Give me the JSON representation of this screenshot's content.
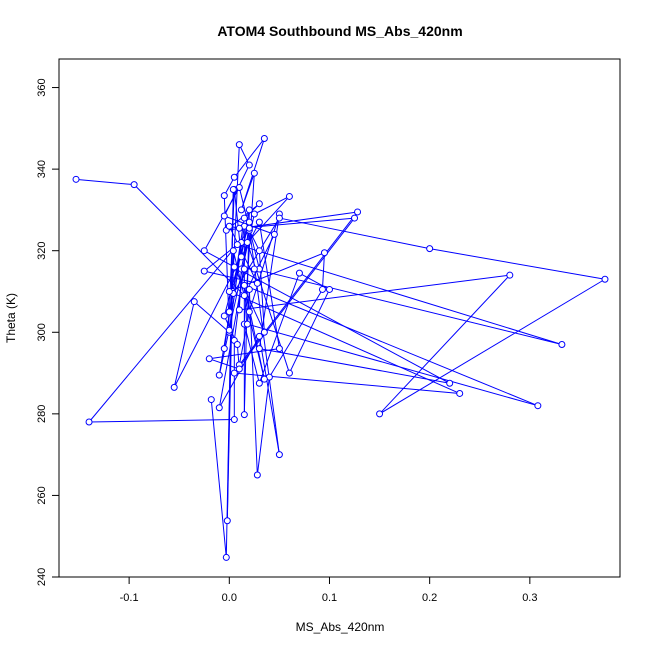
{
  "chart_data": {
    "type": "line",
    "title": "ATOM4 Southbound MS_Abs_420nm",
    "xlabel": "MS_Abs_420nm",
    "ylabel": "Theta (K)",
    "xlim": [
      -0.17,
      0.39
    ],
    "ylim": [
      240,
      367
    ],
    "xticks": [
      "-0.1",
      "0.0",
      "0.1",
      "0.2",
      "0.3"
    ],
    "yticks": [
      "240",
      "260",
      "280",
      "300",
      "320",
      "340",
      "360"
    ],
    "grid": false,
    "legend": "none",
    "colors": {
      "series": "#0000ff",
      "axes": "#000000"
    },
    "series": [
      {
        "x": [
          -0.153,
          -0.095,
          0.015,
          0.045,
          -0.005,
          0.02,
          0.01,
          0.003,
          -0.005,
          0.015,
          0.03,
          -0.003,
          0.128,
          0.01,
          0.02,
          0.05,
          0.03,
          0.22,
          -0.025,
          0.01,
          0.03,
          0.005,
          0.035,
          0.03,
          0.02,
          -0.14,
          0.005,
          0.005,
          0.02,
          -0.005,
          0.008,
          0.01,
          -0.02,
          0.05,
          0.03,
          -0.055,
          -0.035,
          0.0,
          0.012,
          -0.01,
          0.025,
          0.06,
          0.018,
          0.06,
          0.1,
          0.07,
          0.03,
          0.015,
          0.025,
          0.012,
          0.035,
          0.005,
          -0.005,
          0.0,
          0.015,
          0.015,
          0.02,
          0.012,
          0.005,
          0.0,
          0.004,
          0.05,
          0.2,
          0.375,
          0.15,
          0.28,
          0.01,
          0.012,
          0.02,
          0.05,
          0.03,
          -0.01,
          0.015,
          0.025,
          0.332,
          0.008,
          -0.025,
          0.028,
          0.0,
          0.01,
          0.125,
          0.005,
          0.23,
          0.0,
          0.095,
          0.093,
          0.04,
          0.028,
          0.02,
          0.018,
          0.308,
          0.015,
          0.035,
          0.004,
          -0.002,
          0.004,
          -0.003,
          -0.018
        ],
        "y": [
          337.5,
          336.2,
          309,
          324,
          328.5,
          341,
          346,
          310,
          296,
          328,
          331.5,
          325,
          329.5,
          292,
          305,
          329,
          296,
          287.5,
          320,
          335.5,
          315.5,
          316,
          300,
          320,
          325,
          278,
          278.6,
          298,
          327,
          304,
          297,
          291,
          293.5,
          296,
          327,
          286.5,
          307.5,
          300,
          322,
          289.5,
          329,
          333.3,
          322,
          290,
          310.5,
          314.5,
          287.5,
          302,
          339,
          330,
          347.5,
          338,
          333.5,
          300.5,
          326,
          279.8,
          330,
          318.5,
          335,
          305,
          309.5,
          328,
          320.5,
          313,
          280,
          314,
          305.5,
          315.5,
          325.5,
          270,
          299,
          281.5,
          315.5,
          315.5,
          297,
          321.5,
          315,
          312,
          326,
          325.5,
          328,
          290,
          285,
          310,
          319.5,
          310.5,
          289,
          265,
          310.5,
          302,
          282,
          311.5,
          288.5,
          320,
          253.8,
          335,
          244.8,
          283.5
        ]
      }
    ]
  }
}
